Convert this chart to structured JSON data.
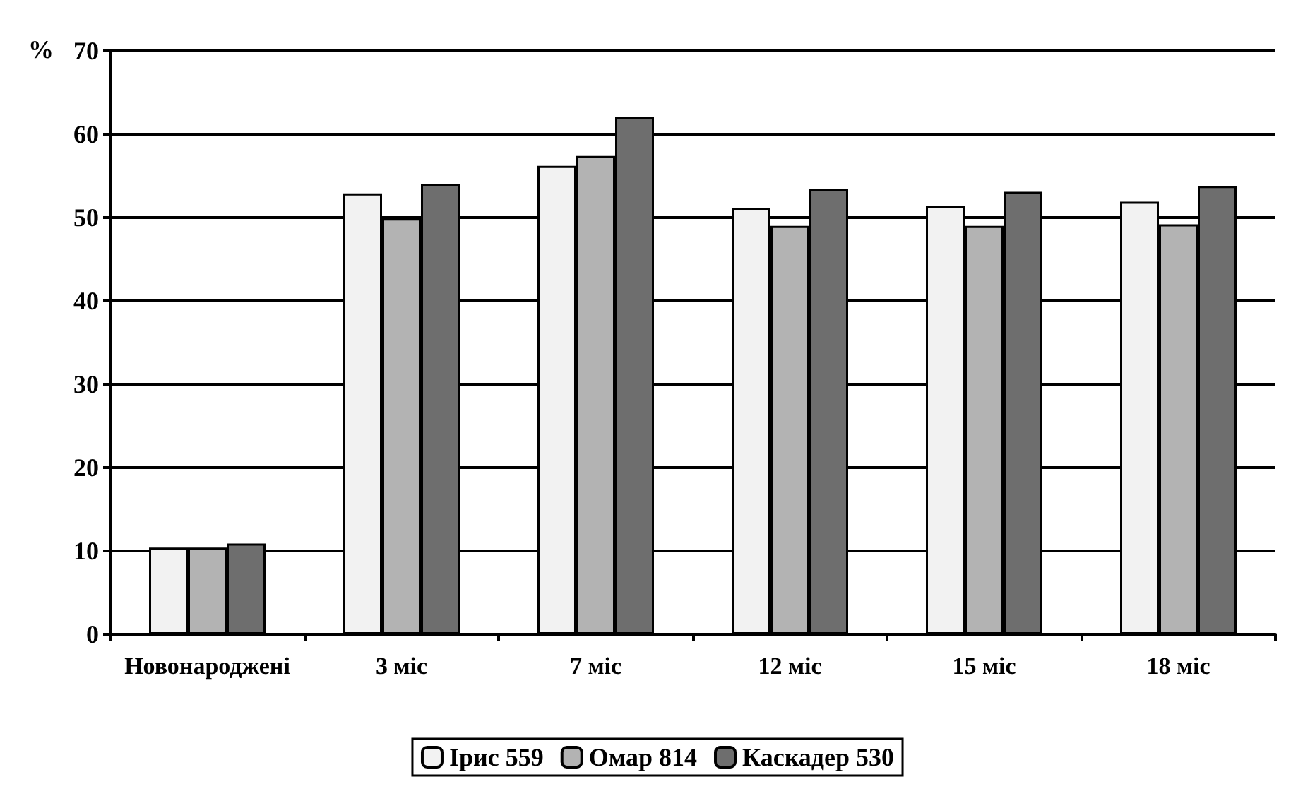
{
  "chart_data": {
    "type": "bar",
    "ylabel": "%",
    "categories": [
      "Новонароджені",
      "3 міс",
      "7 міс",
      "12 міс",
      "15 міс",
      "18 міс"
    ],
    "series": [
      {
        "name": "Ірис 559",
        "color": "#f2f2f2",
        "values": [
          10.4,
          52.9,
          56.2,
          51.1,
          51.4,
          51.9
        ]
      },
      {
        "name": "Омар 814",
        "color": "#b3b3b3",
        "values": [
          10.4,
          49.9,
          57.4,
          49.0,
          49.0,
          49.2
        ]
      },
      {
        "name": "Каскадер 530",
        "color": "#6e6e6e",
        "values": [
          10.9,
          54.0,
          62.1,
          53.4,
          53.1,
          53.8
        ]
      }
    ],
    "ylim": [
      0,
      70
    ],
    "yticks": [
      0,
      10,
      20,
      30,
      40,
      50,
      60,
      70
    ],
    "grid": "y",
    "legend": "bottom"
  }
}
